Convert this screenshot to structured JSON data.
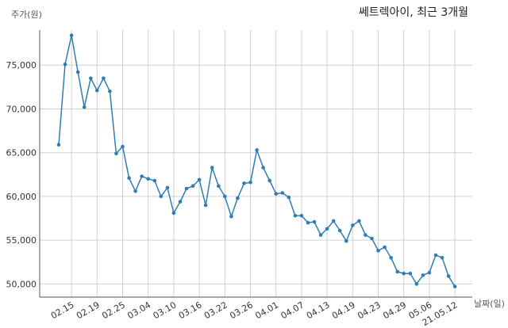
{
  "chart_data": {
    "type": "line",
    "title": "쎄트렉아이, 최근 3개월",
    "xlabel": "날짜(일)",
    "ylabel": "주가(원)",
    "ylim": [
      48500,
      79000
    ],
    "grid": true,
    "line_color": "#2e7eb4",
    "grid_color": "#d0d0d0",
    "x_tick_labels": [
      "02.15",
      "02.19",
      "02.25",
      "03.04",
      "03.10",
      "03.16",
      "03.22",
      "03.26",
      "04.01",
      "04.07",
      "04.13",
      "04.19",
      "04.23",
      "04.29",
      "05.06",
      "21.05.12"
    ],
    "y_ticks": [
      50000,
      55000,
      60000,
      65000,
      70000,
      75000
    ],
    "y_tick_labels": [
      "50,000",
      "55,000",
      "60,000",
      "65,000",
      "70,000",
      "75,000"
    ],
    "series": [
      {
        "x": [
          "02.10",
          "02.11",
          "02.15",
          "02.16",
          "02.17",
          "02.18",
          "02.19",
          "02.22",
          "02.23",
          "02.24",
          "02.25",
          "02.26",
          "03.02",
          "03.03",
          "03.04",
          "03.05",
          "03.08",
          "03.09",
          "03.10",
          "03.11",
          "03.12",
          "03.15",
          "03.16",
          "03.17",
          "03.18",
          "03.19",
          "03.22",
          "03.23",
          "03.24",
          "03.25",
          "03.26",
          "03.29",
          "03.30",
          "03.31",
          "04.01",
          "04.02",
          "04.05",
          "04.06",
          "04.07",
          "04.08",
          "04.09",
          "04.12",
          "04.13",
          "04.14",
          "04.15",
          "04.16",
          "04.19",
          "04.20",
          "04.21",
          "04.22",
          "04.23",
          "04.26",
          "04.27",
          "04.28",
          "04.29",
          "04.30",
          "05.03",
          "05.04",
          "05.06",
          "05.07",
          "05.10",
          "05.11",
          "05.12"
        ],
        "values": [
          65900,
          75100,
          78400,
          74200,
          70200,
          73500,
          72100,
          73500,
          72000,
          64900,
          65700,
          62100,
          60600,
          62300,
          62000,
          61800,
          60000,
          61000,
          58100,
          59400,
          60900,
          61200,
          61900,
          59000,
          63300,
          61200,
          60000,
          57700,
          59800,
          61500,
          61600,
          65300,
          63300,
          61800,
          60300,
          60400,
          59900,
          57800,
          57800,
          57000,
          57100,
          55600,
          56300,
          57200,
          56100,
          54900,
          56700,
          57200,
          55600,
          55200,
          53800,
          54200,
          53000,
          51400,
          51200,
          51200,
          50000,
          51000,
          51300,
          53300,
          53000,
          50900,
          49700
        ]
      }
    ]
  }
}
